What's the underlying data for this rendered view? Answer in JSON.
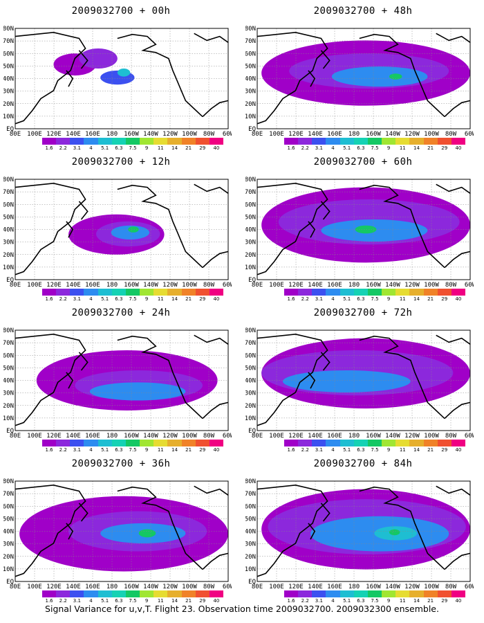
{
  "footer": {
    "caption": "Signal Variance for u,v,T. Flight 23. Observation time 2009032700. 2009032300 ensemble."
  },
  "axes": {
    "x_ticks": [
      "80E",
      "100E",
      "120E",
      "140E",
      "160E",
      "180",
      "160W",
      "140W",
      "120W",
      "100W",
      "80W",
      "60W"
    ],
    "y_ticks": [
      "EQ",
      "10N",
      "20N",
      "30N",
      "40N",
      "50N",
      "60N",
      "70N",
      "80N"
    ]
  },
  "colorbar": {
    "labels": [
      "1.6",
      "2.2",
      "3.1",
      "4",
      "5.1",
      "6.3",
      "7.5",
      "9",
      "11",
      "14",
      "21",
      "29",
      "40"
    ],
    "colors": [
      "#a000c8",
      "#8c28dc",
      "#3c50f0",
      "#2d8cf0",
      "#1ebed2",
      "#15d2b4",
      "#14c864",
      "#a0e632",
      "#e6dc32",
      "#e6af2d",
      "#f08228",
      "#f05030",
      "#f00082"
    ]
  },
  "panels": [
    {
      "title": "2009032700 + 00h",
      "lead_h": 0
    },
    {
      "title": "2009032700 + 48h",
      "lead_h": 48
    },
    {
      "title": "2009032700 + 12h",
      "lead_h": 12
    },
    {
      "title": "2009032700 + 60h",
      "lead_h": 60
    },
    {
      "title": "2009032700 + 24h",
      "lead_h": 24
    },
    {
      "title": "2009032700 + 72h",
      "lead_h": 72
    },
    {
      "title": "2009032700 + 36h",
      "lead_h": 36
    },
    {
      "title": "2009032700 + 84h",
      "lead_h": 84
    }
  ]
}
